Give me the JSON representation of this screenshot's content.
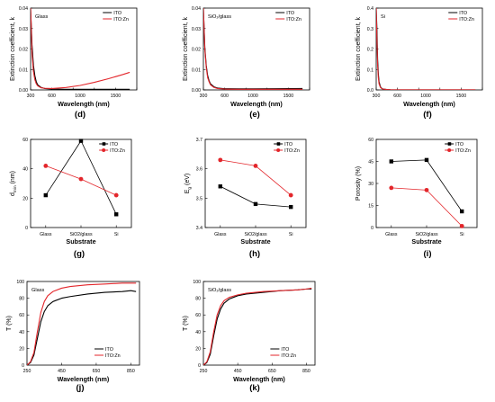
{
  "colors": {
    "ito": "#000000",
    "itozn": "#e3262b"
  },
  "panels": [
    {
      "letter": "(d)"
    },
    {
      "letter": "(e)"
    },
    {
      "letter": "(f)"
    },
    {
      "letter": "(g)"
    },
    {
      "letter": "(h)"
    },
    {
      "letter": "(i)"
    },
    {
      "letter": "(j)"
    },
    {
      "letter": "(k)"
    }
  ],
  "chart_data": [
    {
      "type": "line",
      "inset_label": "Glass",
      "xlabel": "Wavelength (nm)",
      "ylabel": "Extinction coefficient, k",
      "xlim": [
        300,
        1800
      ],
      "ylim": [
        0,
        0.04
      ],
      "xticks": [
        300,
        600,
        900,
        1200,
        1500,
        1800
      ],
      "xtick_labels": [
        "300",
        "600",
        "1000",
        "1500"
      ],
      "xtick_label_values": [
        300,
        600,
        1000,
        1500
      ],
      "yticks": [
        0,
        0.01,
        0.02,
        0.03,
        0.04
      ],
      "ytick_labels": [
        "0.00",
        "0.01",
        "0.02",
        "0.03",
        "0.04"
      ],
      "legend": "top-right",
      "series": [
        {
          "name": "ITO",
          "x": [
            300,
            320,
            340,
            360,
            380,
            400,
            450,
            500,
            600,
            800,
            1000,
            1300,
            1700
          ],
          "y": [
            0.04,
            0.022,
            0.012,
            0.007,
            0.004,
            0.0025,
            0.0012,
            0.0007,
            0.0004,
            0.0003,
            0.0003,
            0.0003,
            0.0003
          ]
        },
        {
          "name": "ITO:Zn",
          "x": [
            300,
            310,
            320,
            340,
            360,
            380,
            400,
            450,
            500,
            600,
            800,
            1000,
            1200,
            1400,
            1600,
            1700
          ],
          "y": [
            0.04,
            0.03,
            0.018,
            0.009,
            0.005,
            0.003,
            0.002,
            0.001,
            0.0008,
            0.0007,
            0.0012,
            0.0022,
            0.0037,
            0.0055,
            0.0075,
            0.0086
          ]
        }
      ]
    },
    {
      "type": "line",
      "inset_label": "SiO₂/glass",
      "xlabel": "Wavelength (nm)",
      "ylabel": "Extinction coefficient, k",
      "xlim": [
        300,
        1800
      ],
      "ylim": [
        0,
        0.04
      ],
      "xticks": [
        300,
        600,
        900,
        1200,
        1500,
        1800
      ],
      "xtick_labels": [
        "300",
        "600",
        "1000",
        "1500"
      ],
      "xtick_label_values": [
        300,
        600,
        1000,
        1500
      ],
      "yticks": [
        0,
        0.01,
        0.02,
        0.03,
        0.04
      ],
      "ytick_labels": [
        "0.00",
        "0.01",
        "0.02",
        "0.03",
        "0.04"
      ],
      "legend": "top-right",
      "series": [
        {
          "name": "ITO",
          "x": [
            300,
            320,
            340,
            360,
            380,
            400,
            450,
            500,
            600,
            800,
            1000,
            1300,
            1700
          ],
          "y": [
            0.04,
            0.021,
            0.012,
            0.007,
            0.0045,
            0.003,
            0.0015,
            0.0009,
            0.0006,
            0.0005,
            0.0005,
            0.0006,
            0.0007
          ]
        },
        {
          "name": "ITO:Zn",
          "x": [
            300,
            320,
            340,
            360,
            380,
            400,
            450,
            500,
            600,
            800,
            1000,
            1300,
            1700
          ],
          "y": [
            0.04,
            0.02,
            0.011,
            0.006,
            0.004,
            0.0025,
            0.0012,
            0.0007,
            0.0004,
            0.0003,
            0.0003,
            0.0003,
            0.0003
          ]
        }
      ]
    },
    {
      "type": "line",
      "inset_label": "Si",
      "xlabel": "Wavelength (nm)",
      "ylabel": "Extinction coefficient, k",
      "xlim": [
        300,
        1800
      ],
      "ylim": [
        0,
        0.4
      ],
      "xticks": [
        300,
        600,
        900,
        1200,
        1500,
        1800
      ],
      "xtick_labels": [
        "300",
        "600",
        "1000",
        "1500"
      ],
      "xtick_label_values": [
        300,
        600,
        1000,
        1500
      ],
      "yticks": [
        0,
        0.1,
        0.2,
        0.3,
        0.4
      ],
      "ytick_labels": [
        "0.0",
        "0.1",
        "0.2",
        "0.3",
        "0.4"
      ],
      "legend": "top-right",
      "series": [
        {
          "name": "ITO",
          "x": [
            300,
            310,
            320,
            330,
            340,
            360,
            380,
            400,
            450,
            500,
            700,
            1000,
            1700
          ],
          "y": [
            0.4,
            0.3,
            0.15,
            0.08,
            0.04,
            0.015,
            0.007,
            0.004,
            0.002,
            0.001,
            0.0005,
            0.0003,
            0.0002
          ]
        },
        {
          "name": "ITO:Zn",
          "x": [
            300,
            310,
            320,
            330,
            340,
            360,
            380,
            400,
            450,
            500,
            700,
            1000,
            1700
          ],
          "y": [
            0.4,
            0.25,
            0.12,
            0.06,
            0.03,
            0.012,
            0.006,
            0.004,
            0.002,
            0.001,
            0.0005,
            0.0003,
            0.0002
          ]
        }
      ]
    },
    {
      "type": "line",
      "xlabel": "Substrate",
      "ylabel": "d",
      "ylabel_sub": "min",
      "ylabel_tail": " (nm)",
      "categories": [
        "Glass",
        "SiO2/glass",
        "Si"
      ],
      "ylim": [
        0,
        60
      ],
      "yticks": [
        0,
        20,
        40,
        60
      ],
      "ytick_labels": [
        "0",
        "20",
        "40",
        "60"
      ],
      "legend": "top-right",
      "series": [
        {
          "name": "ITO",
          "marker": "square",
          "values": [
            22,
            59,
            9
          ]
        },
        {
          "name": "ITO:Zn",
          "marker": "circle",
          "values": [
            42,
            33,
            22
          ]
        }
      ]
    },
    {
      "type": "line",
      "xlabel": "Substrate",
      "ylabel": "E",
      "ylabel_sub": "g",
      "ylabel_tail": " (eV)",
      "categories": [
        "Glass",
        "SiO2/glass",
        "Si"
      ],
      "ylim": [
        3.4,
        3.7
      ],
      "yticks": [
        3.4,
        3.5,
        3.6,
        3.7
      ],
      "ytick_labels": [
        "3.4",
        "3.5",
        "3.6",
        "3.7"
      ],
      "legend": "top-right",
      "series": [
        {
          "name": "ITO",
          "marker": "square",
          "values": [
            3.54,
            3.48,
            3.47
          ]
        },
        {
          "name": "ITO:Zn",
          "marker": "circle",
          "values": [
            3.63,
            3.61,
            3.51
          ]
        }
      ]
    },
    {
      "type": "line",
      "xlabel": "Substrate",
      "ylabel": "Porosity (%)",
      "categories": [
        "Glass",
        "SiO2/glass",
        "Si"
      ],
      "ylim": [
        0,
        60
      ],
      "yticks": [
        0,
        15,
        30,
        45,
        60
      ],
      "ytick_labels": [
        "0",
        "15",
        "30",
        "45",
        "60"
      ],
      "legend": "top-right",
      "series": [
        {
          "name": "ITO",
          "marker": "square",
          "values": [
            45,
            46,
            11
          ]
        },
        {
          "name": "ITO:Zn",
          "marker": "circle",
          "values": [
            27,
            25.5,
            1
          ]
        }
      ]
    },
    {
      "type": "line",
      "inset_label": "Glass",
      "xlabel": "Wavelength (nm)",
      "ylabel": "T (%)",
      "xlim": [
        250,
        900
      ],
      "ylim": [
        0,
        100
      ],
      "xticks": [
        250,
        450,
        650,
        850
      ],
      "xtick_labels": [
        "250",
        "450",
        "650",
        "850"
      ],
      "xtick_label_values": [
        250,
        450,
        650,
        850
      ],
      "yticks": [
        0,
        20,
        40,
        60,
        80,
        100
      ],
      "ytick_labels": [
        "0",
        "20",
        "40",
        "60",
        "80",
        "100"
      ],
      "legend": "bottom-right",
      "series": [
        {
          "name": "ITO",
          "x": [
            250,
            270,
            290,
            310,
            330,
            350,
            370,
            400,
            450,
            500,
            600,
            700,
            800,
            850,
            880
          ],
          "y": [
            0,
            3,
            12,
            32,
            52,
            64,
            71,
            76,
            80,
            82,
            85,
            87,
            88,
            89,
            88
          ]
        },
        {
          "name": "ITO:Zn",
          "x": [
            250,
            270,
            290,
            310,
            330,
            350,
            370,
            400,
            450,
            500,
            600,
            700,
            800,
            850,
            880
          ],
          "y": [
            0,
            4,
            15,
            40,
            63,
            76,
            83,
            88,
            92,
            94,
            96,
            97,
            98,
            98,
            98
          ]
        }
      ]
    },
    {
      "type": "line",
      "inset_label": "SiO₂/glass",
      "xlabel": "Wavelength (nm)",
      "ylabel": "T (%)",
      "xlim": [
        250,
        900
      ],
      "ylim": [
        0,
        100
      ],
      "xticks": [
        250,
        450,
        650,
        850
      ],
      "xtick_labels": [
        "250",
        "450",
        "650",
        "850"
      ],
      "xtick_label_values": [
        250,
        450,
        650,
        850
      ],
      "yticks": [
        0,
        20,
        40,
        60,
        80,
        100
      ],
      "ytick_labels": [
        "0",
        "20",
        "40",
        "60",
        "80",
        "100"
      ],
      "legend": "bottom-right",
      "series": [
        {
          "name": "ITO",
          "x": [
            250,
            270,
            290,
            310,
            330,
            350,
            370,
            400,
            450,
            500,
            600,
            700,
            800,
            850,
            880
          ],
          "y": [
            0,
            3,
            13,
            35,
            55,
            67,
            74,
            79,
            83,
            85,
            87,
            89,
            90,
            91,
            91
          ]
        },
        {
          "name": "ITO:Zn",
          "x": [
            250,
            270,
            290,
            310,
            330,
            350,
            370,
            400,
            450,
            500,
            600,
            700,
            800,
            850,
            880
          ],
          "y": [
            0,
            4,
            16,
            40,
            60,
            71,
            77,
            81,
            84,
            86,
            88,
            89,
            90,
            91,
            92
          ]
        }
      ]
    }
  ]
}
